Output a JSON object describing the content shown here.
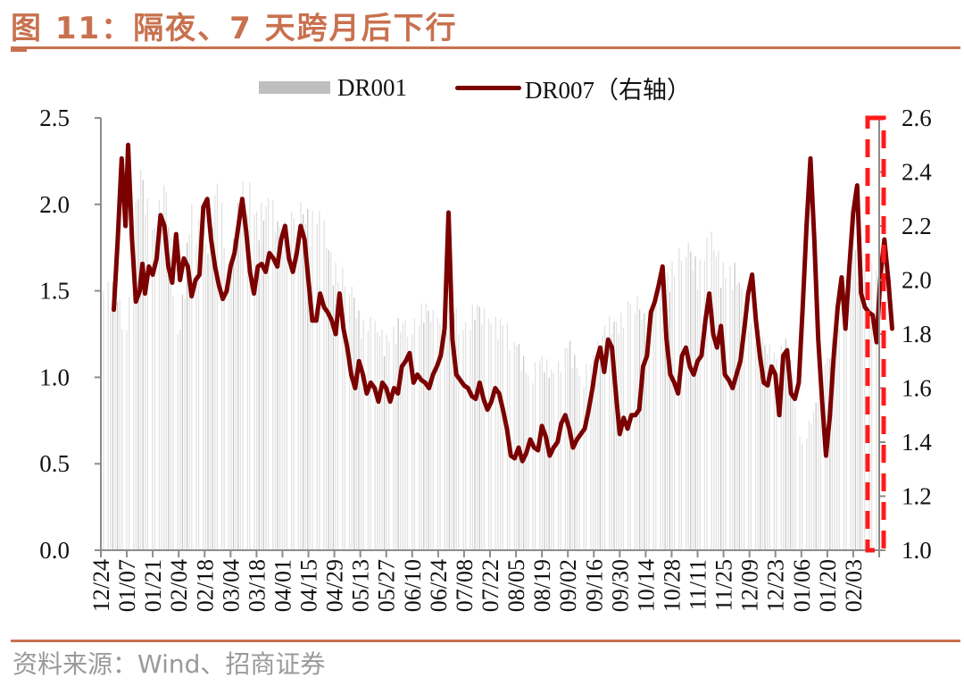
{
  "figure": {
    "title": "图 11：隔夜、7 天跨月后下行",
    "source": "资料来源：Wind、招商证券"
  },
  "legend": {
    "dr001": "DR001",
    "dr007": "DR007（右轴）"
  },
  "colors": {
    "title": "#c8714f",
    "dr001_bar": "#d0d0d0",
    "dr007_line": "#7b0000",
    "highlight_box": "#ff1a1a",
    "axis": "#8c8c8c"
  },
  "chart_data": {
    "type": "bar+line",
    "title": "图 11：隔夜、7 天跨月后下行",
    "xlabel": "",
    "ylabel_left": "DR001",
    "ylabel_right": "DR007（右轴）",
    "ylim_left": [
      0.0,
      2.5
    ],
    "ylim_right": [
      1.0,
      2.6
    ],
    "yticks_left": [
      "0.0",
      "0.5",
      "1.0",
      "1.5",
      "2.0",
      "2.5"
    ],
    "yticks_right": [
      "1.0",
      "1.2",
      "1.4",
      "1.6",
      "1.8",
      "2.0",
      "2.2",
      "2.4",
      "2.6"
    ],
    "x_tick_labels": [
      "12/24",
      "01/07",
      "01/21",
      "02/04",
      "02/18",
      "03/04",
      "03/18",
      "04/01",
      "04/15",
      "04/29",
      "05/13",
      "05/27",
      "06/10",
      "06/24",
      "07/08",
      "07/22",
      "08/05",
      "08/19",
      "09/02",
      "09/16",
      "09/30",
      "10/14",
      "10/28",
      "11/11",
      "11/25",
      "12/09",
      "12/23",
      "01/06",
      "01/20",
      "02/03"
    ],
    "grid": false,
    "legend_position": "top",
    "annotation": "red dashed box highlighting the latest period (late Jan – 02/03)",
    "series": [
      {
        "name": "DR001",
        "axis": "left",
        "type": "bar",
        "x": [
          0,
          0.5,
          1,
          1.5,
          2,
          2.5,
          3,
          3.5,
          4,
          4.5,
          5,
          5.5,
          6,
          6.5,
          7,
          7.5,
          8,
          8.5,
          9,
          9.5,
          10,
          10.5,
          11,
          11.5,
          12,
          12.5,
          13,
          13.5,
          14,
          14.5,
          15,
          15.5,
          16,
          16.5,
          17,
          17.5,
          18,
          18.5,
          19,
          19.5,
          20,
          20.5,
          21,
          21.5,
          22,
          22.5,
          23,
          23.5,
          24,
          24.5,
          25,
          25.5,
          26,
          26.5,
          27,
          27.5,
          28,
          28.5,
          29
        ],
        "values": [
          1.5,
          1.3,
          2.2,
          1.8,
          2.1,
          1.2,
          2.0,
          1.7,
          2.1,
          1.6,
          2.2,
          1.9,
          2.0,
          1.8,
          2.0,
          1.9,
          1.9,
          1.6,
          1.6,
          1.3,
          1.3,
          1.2,
          1.3,
          1.3,
          1.4,
          1.3,
          1.4,
          1.3,
          1.4,
          1.3,
          1.3,
          1.2,
          1.0,
          1.1,
          1.0,
          1.2,
          1.0,
          1.1,
          1.3,
          1.3,
          1.5,
          1.3,
          1.5,
          1.6,
          1.8,
          1.6,
          1.8,
          1.6,
          1.6,
          1.3,
          1.2,
          1.1,
          1.2,
          0.6,
          0.8,
          1.1,
          1.3,
          1.7,
          1.6
        ]
      },
      {
        "name": "DR007（右轴）",
        "axis": "right",
        "type": "line",
        "x": [
          0,
          0.15,
          0.3,
          0.45,
          0.55,
          0.7,
          0.85,
          1.0,
          1.1,
          1.2,
          1.35,
          1.5,
          1.65,
          1.8,
          1.95,
          2.1,
          2.25,
          2.4,
          2.55,
          2.7,
          2.85,
          3.0,
          3.15,
          3.3,
          3.45,
          3.6,
          3.75,
          3.9,
          4.05,
          4.2,
          4.35,
          4.5,
          4.65,
          4.8,
          4.95,
          5.1,
          5.25,
          5.4,
          5.55,
          5.7,
          5.85,
          6.0,
          6.15,
          6.3,
          6.45,
          6.6,
          6.75,
          6.9,
          7.05,
          7.2,
          7.35,
          7.5,
          7.65,
          7.8,
          7.95,
          8.1,
          8.25,
          8.4,
          8.55,
          8.7,
          8.85,
          9.0,
          9.15,
          9.3,
          9.45,
          9.6,
          9.75,
          9.9,
          10.05,
          10.2,
          10.35,
          10.5,
          10.65,
          10.8,
          10.95,
          11.1,
          11.25,
          11.4,
          11.55,
          11.7,
          11.85,
          12.0,
          12.15,
          12.3,
          12.45,
          12.6,
          12.75,
          12.9,
          13.05,
          13.2,
          13.35,
          13.5,
          13.65,
          13.8,
          13.95,
          14.1,
          14.25,
          14.4,
          14.55,
          14.7,
          14.85,
          15.0,
          15.15,
          15.3,
          15.45,
          15.6,
          15.75,
          15.9,
          16.05,
          16.2,
          16.35,
          16.5,
          16.65,
          16.8,
          16.95,
          17.1,
          17.25,
          17.4,
          17.55,
          17.7,
          17.85,
          18.0,
          18.15,
          18.3,
          18.45,
          18.6,
          18.75,
          18.9,
          19.05,
          19.2,
          19.35,
          19.5,
          19.65,
          19.8,
          19.95,
          20.1,
          20.25,
          20.4,
          20.55,
          20.7,
          20.85,
          21.0,
          21.15,
          21.3,
          21.45,
          21.6,
          21.75,
          21.9,
          22.05,
          22.2,
          22.35,
          22.5,
          22.65,
          22.8,
          22.95,
          23.1,
          23.25,
          23.4,
          23.55,
          23.7,
          23.85,
          24.0,
          24.15,
          24.3,
          24.45,
          24.6,
          24.75,
          24.9,
          25.05,
          25.2,
          25.35,
          25.5,
          25.65,
          25.8,
          25.95,
          26.1,
          26.25,
          26.4,
          26.55,
          26.7,
          26.85,
          27.0,
          27.15,
          27.3,
          27.45,
          27.6,
          27.75,
          27.9,
          28.05,
          28.2,
          28.35,
          28.5,
          28.65,
          28.8,
          28.95,
          29.1,
          29.25,
          29.4,
          29.55,
          29.7,
          29.85,
          30.0
        ],
        "values": [
          1.89,
          2.15,
          2.45,
          2.2,
          2.5,
          2.15,
          1.92,
          1.96,
          2.06,
          1.95,
          2.05,
          2.02,
          2.08,
          2.24,
          2.2,
          2.05,
          1.99,
          2.17,
          2.0,
          2.08,
          2.05,
          1.94,
          2.0,
          2.02,
          2.27,
          2.3,
          2.15,
          2.05,
          1.98,
          1.93,
          1.96,
          2.05,
          2.1,
          2.2,
          2.3,
          2.18,
          2.03,
          1.95,
          2.05,
          2.06,
          2.03,
          2.1,
          2.08,
          2.05,
          2.15,
          2.2,
          2.08,
          2.03,
          2.1,
          2.2,
          2.15,
          2.0,
          1.85,
          1.85,
          1.95,
          1.9,
          1.88,
          1.85,
          1.8,
          1.95,
          1.82,
          1.75,
          1.65,
          1.6,
          1.7,
          1.65,
          1.58,
          1.62,
          1.6,
          1.55,
          1.62,
          1.6,
          1.55,
          1.6,
          1.58,
          1.68,
          1.7,
          1.73,
          1.62,
          1.65,
          1.63,
          1.62,
          1.6,
          1.65,
          1.68,
          1.72,
          1.82,
          2.25,
          1.78,
          1.65,
          1.63,
          1.61,
          1.6,
          1.57,
          1.56,
          1.62,
          1.56,
          1.52,
          1.55,
          1.6,
          1.58,
          1.52,
          1.45,
          1.35,
          1.34,
          1.38,
          1.33,
          1.36,
          1.41,
          1.38,
          1.37,
          1.46,
          1.42,
          1.35,
          1.38,
          1.4,
          1.47,
          1.5,
          1.45,
          1.38,
          1.41,
          1.43,
          1.45,
          1.52,
          1.6,
          1.7,
          1.75,
          1.66,
          1.78,
          1.75,
          1.58,
          1.43,
          1.49,
          1.45,
          1.5,
          1.5,
          1.52,
          1.68,
          1.72,
          1.88,
          1.92,
          1.98,
          2.05,
          1.78,
          1.65,
          1.62,
          1.58,
          1.72,
          1.75,
          1.68,
          1.65,
          1.7,
          1.72,
          1.85,
          1.95,
          1.8,
          1.75,
          1.83,
          1.65,
          1.63,
          1.6,
          1.65,
          1.7,
          1.82,
          1.95,
          2.02,
          1.85,
          1.72,
          1.62,
          1.61,
          1.68,
          1.65,
          1.5,
          1.72,
          1.74,
          1.58,
          1.56,
          1.62,
          1.9,
          2.2,
          2.45,
          2.15,
          1.78,
          1.55,
          1.35,
          1.5,
          1.72,
          1.9,
          2.01,
          1.82,
          2.05,
          2.25,
          2.35,
          1.95,
          1.9,
          1.88,
          1.87,
          1.77,
          2.02,
          2.15,
          2.0,
          1.82
        ]
      }
    ]
  }
}
